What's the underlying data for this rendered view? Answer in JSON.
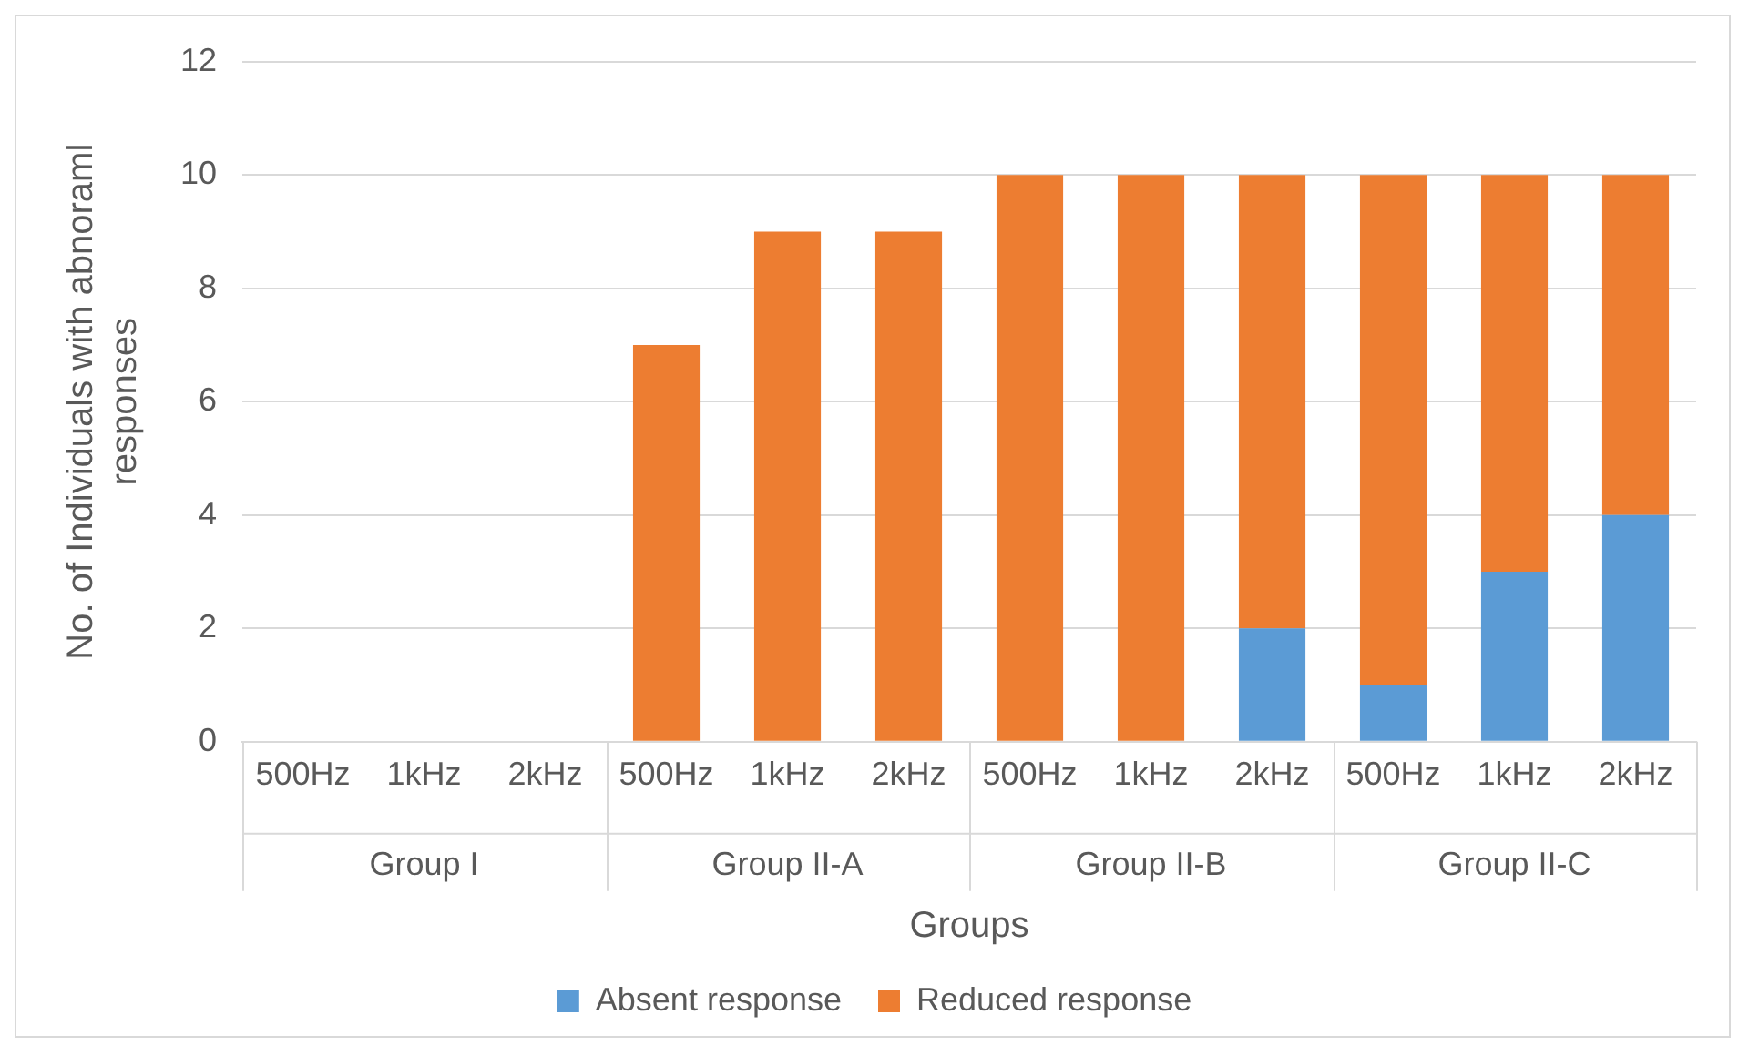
{
  "chart_data": {
    "type": "bar",
    "stacked": true,
    "xlabel": "Groups",
    "ylabel": "No. of Individuals with abnoraml responses",
    "categories": [
      "500Hz",
      "1kHz",
      "2kHz",
      "500Hz",
      "1kHz",
      "2kHz",
      "500Hz",
      "1kHz",
      "2kHz",
      "500Hz",
      "1kHz",
      "2kHz"
    ],
    "series": [
      {
        "name": "Absent response",
        "color": "#5b9bd5",
        "values": [
          0,
          0,
          0,
          0,
          0,
          0,
          0,
          0,
          2,
          1,
          3,
          4
        ]
      },
      {
        "name": "Reduced response",
        "color": "#ed7d31",
        "values": [
          0,
          0,
          0,
          7,
          9,
          9,
          10,
          10,
          8,
          9,
          7,
          6
        ]
      }
    ],
    "annotations": [
      "Group I",
      "Group II-A",
      "Group II-B",
      "Group II-C"
    ],
    "ylim": [
      0,
      12
    ],
    "yticks": [
      0,
      2,
      4,
      6,
      8,
      10,
      12
    ],
    "grid": "y",
    "legend": "bottom"
  }
}
